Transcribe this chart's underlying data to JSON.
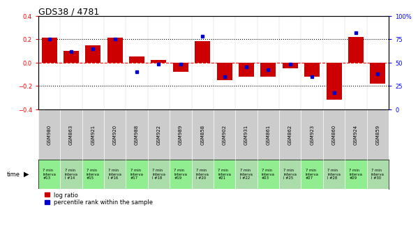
{
  "title": "GDS38 / 4781",
  "samples": [
    "GSM980",
    "GSM863",
    "GSM921",
    "GSM920",
    "GSM988",
    "GSM922",
    "GSM989",
    "GSM858",
    "GSM902",
    "GSM931",
    "GSM861",
    "GSM862",
    "GSM923",
    "GSM860",
    "GSM924",
    "GSM859"
  ],
  "interval_top": [
    "7 min",
    "7 min",
    "7 min",
    "7 min",
    "7 min",
    "7 min",
    "7 min",
    "7 min",
    "7 min",
    "7 min",
    "7 min",
    "7 min",
    "7 min",
    "7 min",
    "7 min",
    "7 min"
  ],
  "interval_mid": [
    "interva",
    "interva",
    "interva",
    "interva",
    "interva",
    "interva",
    "interva",
    "interva",
    "interva",
    "interva",
    "interva",
    "interva",
    "interva",
    "interva",
    "interva",
    "interva"
  ],
  "interval_bot": [
    "#13",
    "l #14",
    "#15",
    "l #16",
    "#17",
    "l #18",
    "#19",
    "l #20",
    "#21",
    "l #22",
    "#23",
    "l #25",
    "#27",
    "l #28",
    "#29",
    "l #30"
  ],
  "log_ratio": [
    0.21,
    0.1,
    0.15,
    0.21,
    0.05,
    0.02,
    -0.08,
    0.18,
    -0.15,
    -0.12,
    -0.12,
    -0.05,
    -0.12,
    -0.32,
    0.22,
    -0.18
  ],
  "percentile": [
    75,
    62,
    65,
    75,
    40,
    48,
    48,
    78,
    35,
    45,
    42,
    48,
    35,
    18,
    82,
    38
  ],
  "ylim": [
    -0.4,
    0.4
  ],
  "y2lim": [
    0,
    100
  ],
  "yticks": [
    -0.4,
    -0.2,
    0.0,
    0.2,
    0.4
  ],
  "y2ticks": [
    0,
    25,
    50,
    75,
    100
  ],
  "bar_color": "#cc0000",
  "dot_color": "#0000cc",
  "bg_color": "#ffffff",
  "green_bg": "#90ee90",
  "green_bg2": "#aaddaa",
  "gray_bg": "#cccccc",
  "title_fontsize": 9,
  "tick_fontsize": 6,
  "label_fontsize": 6
}
